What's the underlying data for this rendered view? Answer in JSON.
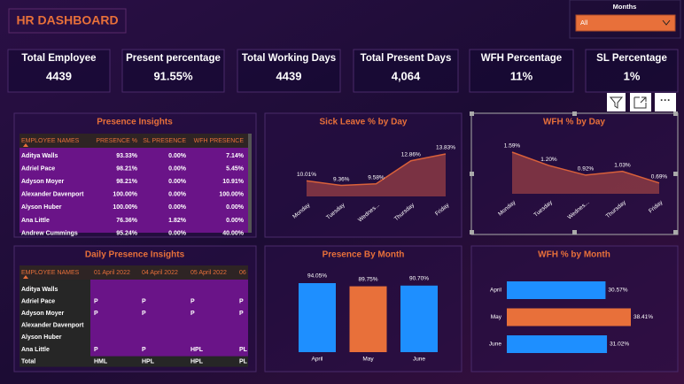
{
  "header": {
    "title": "HR DASHBOARD"
  },
  "filter": {
    "label": "Months",
    "value": "All"
  },
  "kpis": [
    {
      "label": "Total Employee",
      "value": "4439"
    },
    {
      "label": "Present percentage",
      "value": "91.55%"
    },
    {
      "label": "Total Working Days",
      "value": "4439"
    },
    {
      "label": "Total Present Days",
      "value": "4,064"
    },
    {
      "label": "WFH Percentage",
      "value": "11%"
    },
    {
      "label": "SL Percentage",
      "value": "1%"
    }
  ],
  "tables": [
    {
      "title": "Presence Insights",
      "columns": [
        "EMPLOYEE NAMES",
        "PRESENCE %",
        "SL PRESENCE",
        "WFH PRESENCE"
      ],
      "rows": [
        [
          "Aditya Walls",
          "93.33%",
          "0.00%",
          "7.14%"
        ],
        [
          "Adriel Pace",
          "98.21%",
          "0.00%",
          "5.45%"
        ],
        [
          "Adyson Moyer",
          "98.21%",
          "0.00%",
          "10.91%"
        ],
        [
          "Alexander Davenport",
          "100.00%",
          "0.00%",
          "100.00%"
        ],
        [
          "Alyson Huber",
          "100.00%",
          "0.00%",
          "0.00%"
        ],
        [
          "Ana Little",
          "76.36%",
          "1.82%",
          "0.00%"
        ],
        [
          "Andrew Cummings",
          "95.24%",
          "0.00%",
          "40.00%"
        ]
      ]
    },
    {
      "title": "Daily Presence Insights",
      "columns": [
        "EMPLOYEE NAMES",
        "01 April 2022",
        "04 April 2022",
        "05 April 2022",
        "06"
      ],
      "rows": [
        [
          "Aditya Walls",
          null,
          null,
          null,
          null
        ],
        [
          "Adriel Pace",
          "P",
          "P",
          "P",
          "P"
        ],
        [
          "Adyson Moyer",
          "P",
          "P",
          "P",
          "P"
        ],
        [
          "Alexander Davenport",
          null,
          null,
          null,
          null
        ],
        [
          "Alyson Huber",
          null,
          null,
          null,
          null
        ],
        [
          "Ana Little",
          "P",
          "P",
          "HPL",
          "PL"
        ],
        [
          "Total",
          "HML",
          "HPL",
          "HPL",
          "PL"
        ]
      ]
    }
  ],
  "chart_data": [
    {
      "type": "area",
      "title": "Sick Leave % by Day",
      "categories": [
        "Monday",
        "Tuesday",
        "Wednes...",
        "Thursday",
        "Friday"
      ],
      "values": [
        10.01,
        9.36,
        9.58,
        12.86,
        13.83
      ],
      "value_labels": [
        "10.01%",
        "9.36%",
        "9.58%",
        "12.86%",
        "13.83%"
      ],
      "color": "#d9603a"
    },
    {
      "type": "area",
      "title": "WFH % by Day",
      "categories": [
        "Monday",
        "Tuesday",
        "Wednes...",
        "Thursday",
        "Friday"
      ],
      "values": [
        1.59,
        1.2,
        0.92,
        1.03,
        0.69
      ],
      "value_labels": [
        "1.59%",
        "1.20%",
        "0.92%",
        "1.03%",
        "0.69%"
      ],
      "color": "#d9603a"
    },
    {
      "type": "bar",
      "title": "Presence By Month",
      "categories": [
        "April",
        "May",
        "June"
      ],
      "values": [
        94.05,
        89.75,
        90.7
      ],
      "value_labels": [
        "94.05%",
        "89.75%",
        "90.70%"
      ],
      "colors": [
        "#1e8fff",
        "#e8703a",
        "#1e8fff"
      ]
    },
    {
      "type": "barh",
      "title": "WFH % by Month",
      "categories": [
        "April",
        "May",
        "June"
      ],
      "values": [
        30.57,
        38.41,
        31.02
      ],
      "value_labels": [
        "30.57%",
        "38.41%",
        "31.02%"
      ],
      "colors": [
        "#1e8fff",
        "#e8703a",
        "#1e8fff"
      ]
    }
  ]
}
